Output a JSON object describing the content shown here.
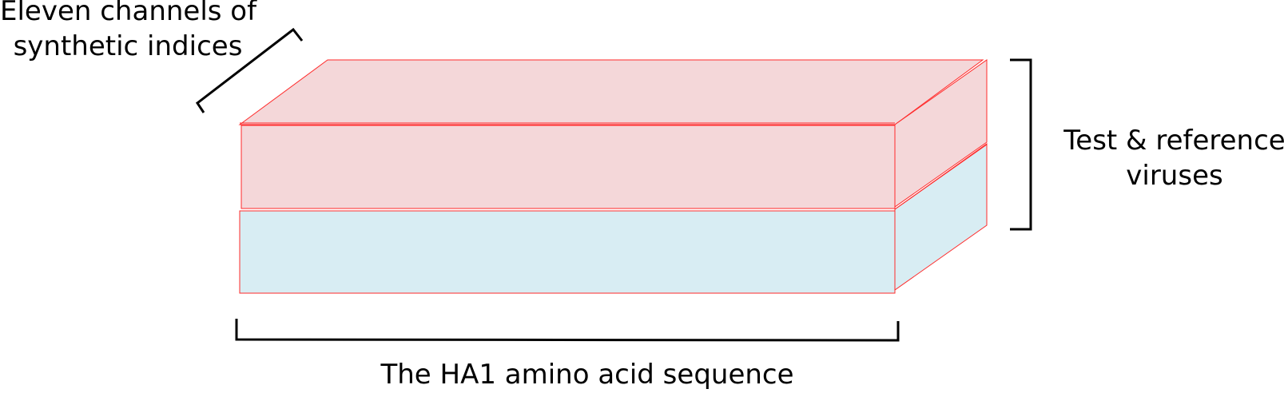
{
  "colors": {
    "top_block_fill": "#f4d7d9",
    "bottom_block_fill": "#d8edf3",
    "block_stroke": "#ff2a2a",
    "bracket_stroke": "#000000"
  },
  "labels": {
    "channels_line1": "Eleven channels of",
    "channels_line2": "synthetic indices",
    "viruses_line1": "Test & reference",
    "viruses_line2": "viruses",
    "sequence": "The HA1 amino acid sequence"
  }
}
